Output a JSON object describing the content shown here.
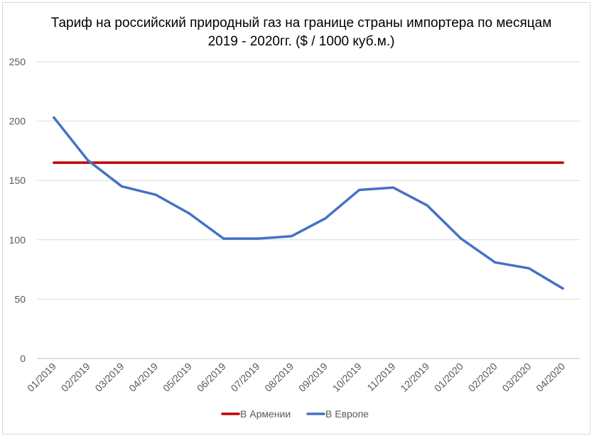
{
  "chart_data": {
    "type": "line",
    "title": "Тариф на российский природный газ на границе страны импортера по месяцам 2019 - 2020гг. ($ / 1000 куб.м.)",
    "categories": [
      "01/2019",
      "02/2019",
      "03/2019",
      "04/2019",
      "05/2019",
      "06/2019",
      "07/2019",
      "08/2019",
      "09/2019",
      "10/2019",
      "11/2019",
      "12/2019",
      "01/2020",
      "02/2020",
      "03/2020",
      "04/2020"
    ],
    "series": [
      {
        "name": "В Армении",
        "color": "#c00000",
        "values": [
          165,
          165,
          165,
          165,
          165,
          165,
          165,
          165,
          165,
          165,
          165,
          165,
          165,
          165,
          165,
          165
        ]
      },
      {
        "name": "В Европе",
        "color": "#4472c4",
        "values": [
          203,
          167,
          145,
          138,
          122,
          101,
          101,
          103,
          118,
          142,
          144,
          129,
          101,
          81,
          76,
          59
        ]
      }
    ],
    "ylim": [
      0,
      250
    ],
    "yticks": [
      0,
      50,
      100,
      150,
      200,
      250
    ],
    "grid": true,
    "legend": "bottom"
  }
}
